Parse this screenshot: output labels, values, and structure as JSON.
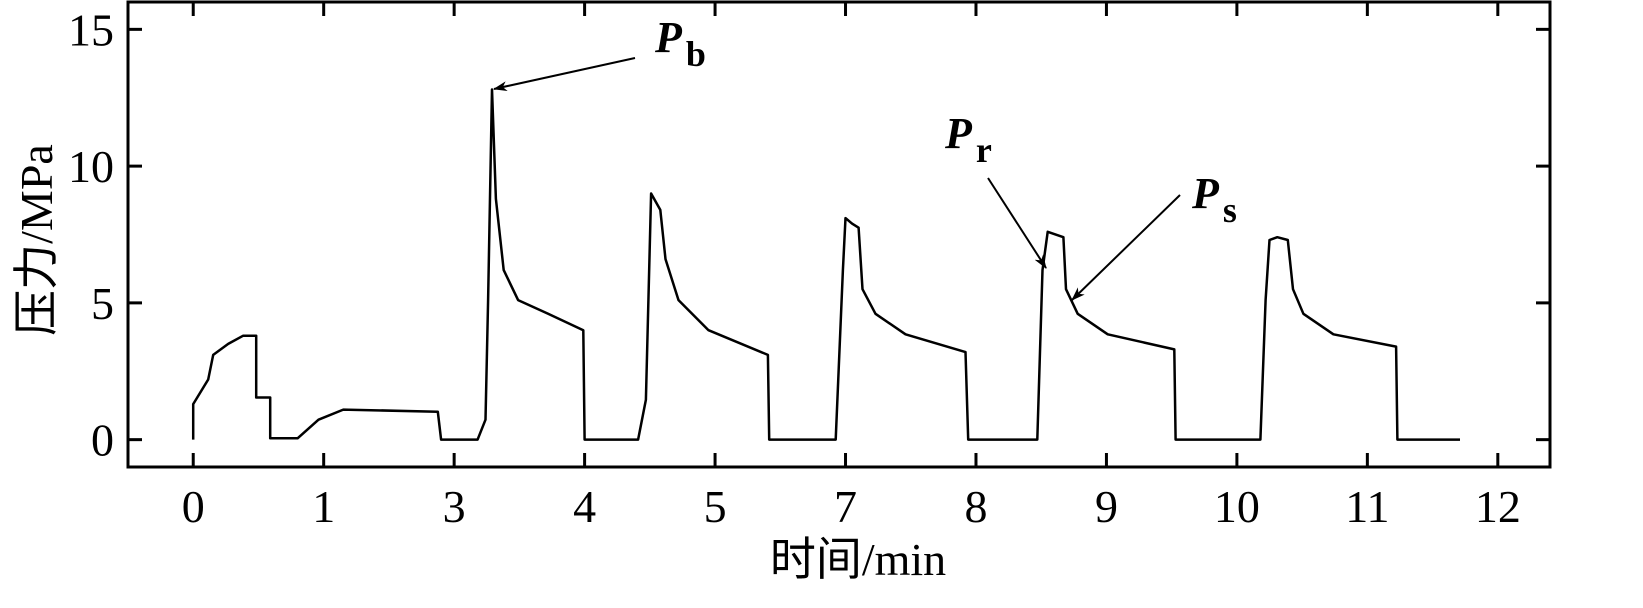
{
  "chart_data": {
    "type": "line",
    "xlabel": "时间/min",
    "ylabel": "压力/MPa",
    "x": [
      0,
      0,
      0.115,
      0.153,
      0.268,
      0.383,
      0.483,
      0.483,
      0.59,
      0.59,
      0.8,
      0.96,
      1.3,
      2.75,
      2.8,
      3.18,
      3.24,
      3.26,
      3.29,
      3.32,
      3.38,
      3.49,
      3.72,
      3.99,
      4.0,
      4.41,
      4.47,
      4.51,
      4.58,
      4.62,
      4.72,
      4.95,
      5.81,
      5.83,
      6.85,
      6.96,
      7.0,
      7.05,
      7.1,
      7.13,
      7.23,
      7.46,
      7.92,
      7.94,
      8.47,
      8.51,
      8.55,
      8.67,
      8.69,
      8.78,
      9.01,
      9.52,
      9.53,
      10.18,
      10.22,
      10.25,
      10.31,
      10.39,
      10.43,
      10.51,
      10.74,
      11.22,
      11.23,
      11.71
    ],
    "series": [
      {
        "name": "压力",
        "color": "#000000",
        "values": [
          0,
          1.3,
          2.2,
          3.1,
          3.5,
          3.8,
          3.8,
          1.54,
          1.54,
          0.05,
          0.05,
          0.73,
          1.1,
          1.02,
          0,
          0,
          0.73,
          5.1,
          12.8,
          8.8,
          6.2,
          5.1,
          4.6,
          4.0,
          0,
          0,
          1.46,
          9.0,
          8.4,
          6.6,
          5.1,
          4.0,
          3.1,
          0,
          0,
          6.2,
          8.1,
          7.9,
          7.75,
          5.5,
          4.6,
          3.85,
          3.2,
          0,
          0,
          6.2,
          7.6,
          7.4,
          5.5,
          4.6,
          3.85,
          3.3,
          0,
          0,
          5.1,
          7.3,
          7.4,
          7.3,
          5.5,
          4.6,
          3.85,
          3.4,
          0,
          0
        ]
      }
    ],
    "xlim": [
      -0.5,
      12.4
    ],
    "xticks": [
      0,
      1,
      3,
      4,
      5,
      7,
      8,
      9,
      10,
      11,
      12
    ],
    "ylim": [
      -1,
      16
    ],
    "yticks": [
      0,
      5,
      10,
      15
    ],
    "annotations": [
      {
        "text": "P",
        "sub": "b"
      },
      {
        "text": "P",
        "sub": "r"
      },
      {
        "text": "P",
        "sub": "s"
      }
    ]
  }
}
